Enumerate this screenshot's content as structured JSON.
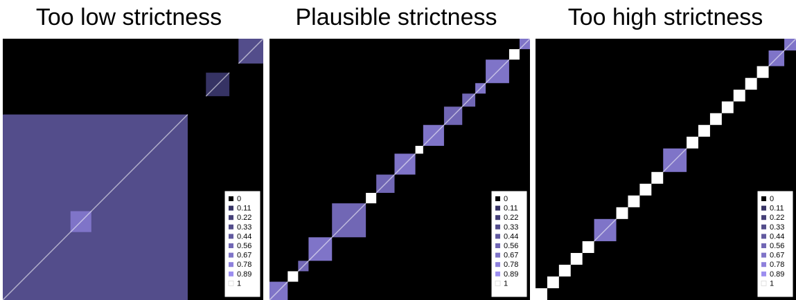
{
  "chart_data": [
    {
      "type": "heatmap",
      "title": "Too low strictness",
      "xlabel": "",
      "ylabel": "",
      "color_scale": {
        "low": "#000000",
        "high": "#ffffff",
        "mid": "#6a66c8"
      },
      "legend": {
        "placement": "bottom-right",
        "entries": [
          "0",
          "0.11",
          "0.22",
          "0.33",
          "0.44",
          "0.56",
          "0.67",
          "0.78",
          "0.89",
          "1"
        ]
      },
      "blocks": [
        {
          "start": 0.0,
          "end": 0.71,
          "value": 0.33
        },
        {
          "start": 0.78,
          "end": 0.87,
          "value": 0.11
        },
        {
          "start": 0.905,
          "end": 1.0,
          "value": 0.33
        },
        {
          "start": 0.26,
          "end": 0.34,
          "value": 0.67
        }
      ]
    },
    {
      "type": "heatmap",
      "title": "Plausible strictness",
      "xlabel": "",
      "ylabel": "",
      "color_scale": {
        "low": "#000000",
        "high": "#ffffff",
        "mid": "#6a66c8"
      },
      "legend": {
        "placement": "bottom-right",
        "entries": [
          "0",
          "0.11",
          "0.22",
          "0.33",
          "0.44",
          "0.56",
          "0.67",
          "0.78",
          "0.89",
          "1"
        ]
      },
      "blocks": [
        {
          "start": 0.0,
          "end": 0.07,
          "value": 0.67
        },
        {
          "start": 0.07,
          "end": 0.11,
          "value": 1
        },
        {
          "start": 0.11,
          "end": 0.15,
          "value": 0.56
        },
        {
          "start": 0.15,
          "end": 0.24,
          "value": 0.67
        },
        {
          "start": 0.24,
          "end": 0.37,
          "value": 0.56
        },
        {
          "start": 0.37,
          "end": 0.41,
          "value": 1
        },
        {
          "start": 0.41,
          "end": 0.48,
          "value": 0.56
        },
        {
          "start": 0.48,
          "end": 0.56,
          "value": 0.67
        },
        {
          "start": 0.56,
          "end": 0.59,
          "value": 1
        },
        {
          "start": 0.59,
          "end": 0.67,
          "value": 0.67
        },
        {
          "start": 0.67,
          "end": 0.74,
          "value": 0.56
        },
        {
          "start": 0.74,
          "end": 0.79,
          "value": 0.56
        },
        {
          "start": 0.79,
          "end": 0.83,
          "value": 0.67
        },
        {
          "start": 0.83,
          "end": 0.92,
          "value": 0.67
        },
        {
          "start": 0.92,
          "end": 0.96,
          "value": 1
        },
        {
          "start": 0.96,
          "end": 1.0,
          "value": 0.67
        }
      ]
    },
    {
      "type": "heatmap",
      "title": "Too high strictness",
      "xlabel": "",
      "ylabel": "",
      "color_scale": {
        "low": "#000000",
        "high": "#ffffff",
        "mid": "#6a66c8"
      },
      "legend": {
        "placement": "bottom-right",
        "entries": [
          "0",
          "0.11",
          "0.22",
          "0.33",
          "0.44",
          "0.56",
          "0.67",
          "0.78",
          "0.89",
          "1"
        ]
      },
      "blocks": [
        {
          "start": 0.0,
          "end": 0.045,
          "value": 1
        },
        {
          "start": 0.045,
          "end": 0.09,
          "value": 1
        },
        {
          "start": 0.09,
          "end": 0.135,
          "value": 1
        },
        {
          "start": 0.135,
          "end": 0.18,
          "value": 1
        },
        {
          "start": 0.18,
          "end": 0.225,
          "value": 1
        },
        {
          "start": 0.225,
          "end": 0.31,
          "value": 0.67
        },
        {
          "start": 0.31,
          "end": 0.355,
          "value": 1
        },
        {
          "start": 0.355,
          "end": 0.4,
          "value": 1
        },
        {
          "start": 0.4,
          "end": 0.445,
          "value": 1
        },
        {
          "start": 0.445,
          "end": 0.49,
          "value": 1
        },
        {
          "start": 0.49,
          "end": 0.58,
          "value": 0.67
        },
        {
          "start": 0.58,
          "end": 0.625,
          "value": 1
        },
        {
          "start": 0.625,
          "end": 0.67,
          "value": 1
        },
        {
          "start": 0.67,
          "end": 0.715,
          "value": 1
        },
        {
          "start": 0.715,
          "end": 0.76,
          "value": 1
        },
        {
          "start": 0.76,
          "end": 0.805,
          "value": 1
        },
        {
          "start": 0.805,
          "end": 0.85,
          "value": 1
        },
        {
          "start": 0.85,
          "end": 0.895,
          "value": 1
        },
        {
          "start": 0.895,
          "end": 0.955,
          "value": 0.67
        },
        {
          "start": 0.955,
          "end": 1.0,
          "value": 0.67
        }
      ]
    }
  ]
}
